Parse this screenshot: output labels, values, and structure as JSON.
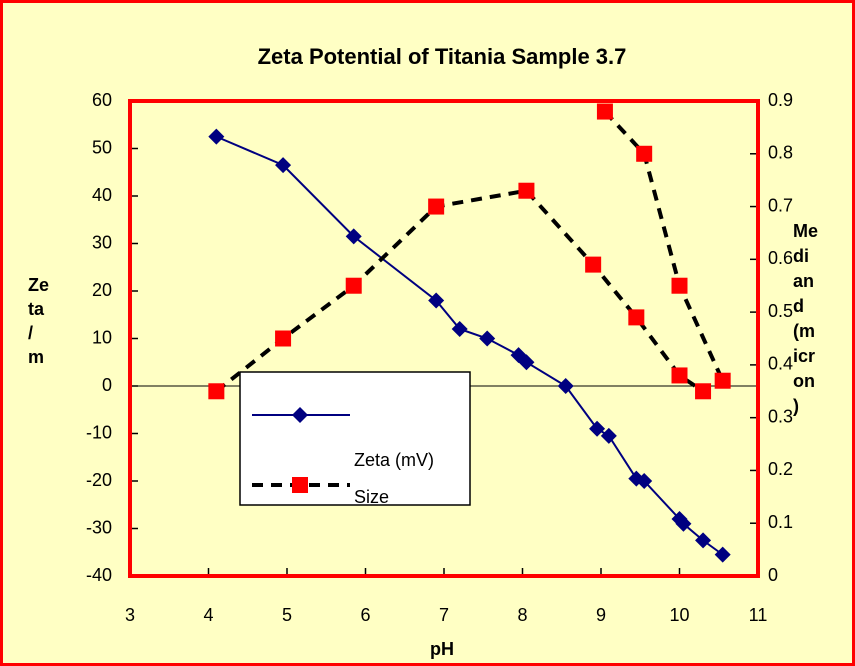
{
  "chart_data": {
    "type": "line",
    "title": "Zeta Potential of Titania Sample 3.7",
    "xlabel": "pH",
    "ylabel_lines": [
      "Ze",
      "ta",
      "/",
      "m"
    ],
    "y2label_lines": [
      "Me",
      "di",
      "an",
      "d",
      "(m",
      "icr",
      "on",
      ")"
    ],
    "xlim": [
      3,
      11
    ],
    "xticks": [
      3,
      4,
      5,
      6,
      7,
      8,
      9,
      10,
      11
    ],
    "ylim": [
      -40,
      60
    ],
    "yticks": [
      -40,
      -30,
      -20,
      -10,
      0,
      10,
      20,
      30,
      40,
      50,
      60
    ],
    "y2lim": [
      0,
      0.9
    ],
    "y2ticks": [
      0,
      0.1,
      0.2,
      0.3,
      0.4,
      0.5,
      0.6,
      0.7,
      0.8,
      0.9
    ],
    "zero_line": true,
    "series": [
      {
        "name": "Zeta (mV)",
        "color": "#000080",
        "line_color": "#000080",
        "marker": "diamond",
        "axis": "y",
        "x": [
          4.1,
          4.95,
          5.85,
          6.9,
          7.2,
          7.55,
          7.95,
          8.05,
          8.55,
          8.95,
          9.1,
          9.45,
          9.55,
          10.0,
          10.05,
          10.3,
          10.55
        ],
        "values": [
          52.5,
          46.5,
          31.5,
          18,
          12,
          10,
          6.5,
          5,
          0,
          -9,
          -10.5,
          -19.5,
          -20,
          -28,
          -29,
          -32.5,
          -35.5
        ]
      },
      {
        "name": "Size",
        "color": "#ff0000",
        "line_color": "#000000",
        "marker": "square",
        "axis": "y2",
        "dashed": true,
        "x": [
          4.1,
          4.95,
          5.85,
          6.9,
          8.05,
          8.9,
          9.45,
          10.0,
          10.3,
          null,
          9.05,
          9.55,
          10.0,
          10.55
        ],
        "values": [
          0.35,
          0.45,
          0.55,
          0.7,
          0.73,
          0.59,
          0.49,
          0.38,
          0.35,
          null,
          0.88,
          0.8,
          0.55,
          0.37
        ]
      }
    ]
  }
}
